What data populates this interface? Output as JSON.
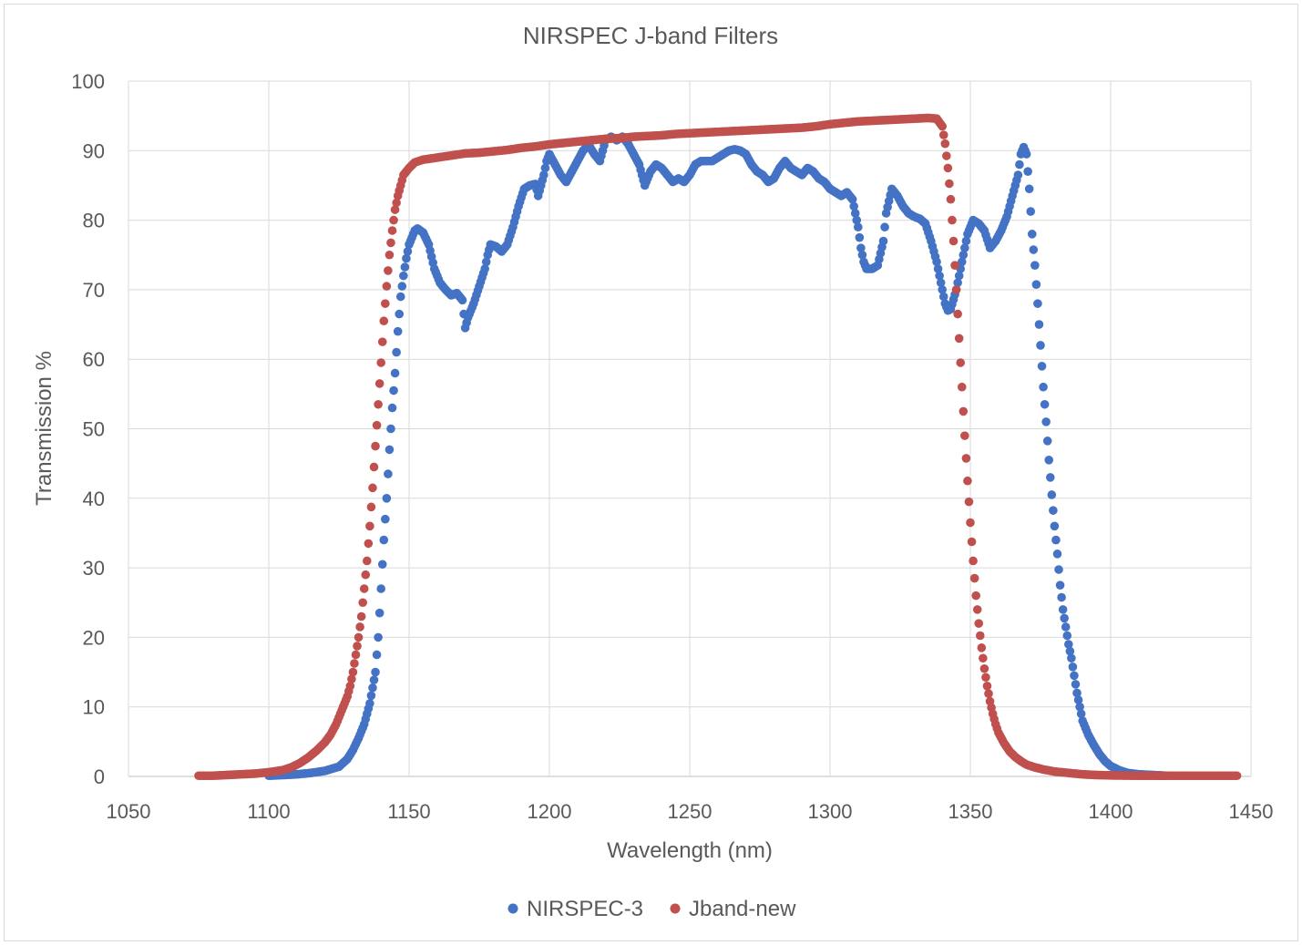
{
  "chart_data": {
    "type": "scatter",
    "title": "NIRSPEC J-band Filters",
    "xlabel": "Wavelength (nm)",
    "ylabel": "Transmission %",
    "xlim": [
      1050,
      1450
    ],
    "ylim": [
      0,
      100
    ],
    "xticks": [
      1050,
      1100,
      1150,
      1200,
      1250,
      1300,
      1350,
      1400,
      1450
    ],
    "yticks": [
      0,
      10,
      20,
      30,
      40,
      50,
      60,
      70,
      80,
      90,
      100
    ],
    "grid": true,
    "legend_position": "bottom",
    "series": [
      {
        "name": "NIRSPEC-3",
        "color": "#4472C4",
        "points": [
          [
            1100,
            0.1
          ],
          [
            1105,
            0.2
          ],
          [
            1110,
            0.3
          ],
          [
            1115,
            0.5
          ],
          [
            1120,
            0.8
          ],
          [
            1125,
            1.4
          ],
          [
            1128,
            2.5
          ],
          [
            1130,
            3.8
          ],
          [
            1132,
            5.5
          ],
          [
            1134,
            7.5
          ],
          [
            1136,
            10.5
          ],
          [
            1138,
            15
          ],
          [
            1139,
            20
          ],
          [
            1140,
            27
          ],
          [
            1141,
            34
          ],
          [
            1142,
            40
          ],
          [
            1143,
            47
          ],
          [
            1144,
            53
          ],
          [
            1145,
            58
          ],
          [
            1146,
            64
          ],
          [
            1147,
            69
          ],
          [
            1148,
            72
          ],
          [
            1149,
            74.5
          ],
          [
            1150,
            76.5
          ],
          [
            1151,
            77.5
          ],
          [
            1152,
            78.5
          ],
          [
            1153,
            78.8
          ],
          [
            1155,
            78.2
          ],
          [
            1157,
            76.5
          ],
          [
            1159,
            73
          ],
          [
            1161,
            71
          ],
          [
            1163,
            70
          ],
          [
            1165,
            69.2
          ],
          [
            1167,
            69.5
          ],
          [
            1169,
            68.5
          ],
          [
            1170,
            64.5
          ],
          [
            1171,
            66
          ],
          [
            1173,
            68
          ],
          [
            1175,
            70.5
          ],
          [
            1177,
            73
          ],
          [
            1178,
            75
          ],
          [
            1179,
            76.5
          ],
          [
            1181,
            76.2
          ],
          [
            1183,
            75.5
          ],
          [
            1185,
            76.5
          ],
          [
            1187,
            79
          ],
          [
            1189,
            82
          ],
          [
            1191,
            84.5
          ],
          [
            1193,
            85
          ],
          [
            1195,
            85.2
          ],
          [
            1196,
            83.5
          ],
          [
            1198,
            86.5
          ],
          [
            1199,
            88.5
          ],
          [
            1200,
            89.5
          ],
          [
            1202,
            88
          ],
          [
            1204,
            86.5
          ],
          [
            1206,
            85.5
          ],
          [
            1208,
            87
          ],
          [
            1210,
            88.5
          ],
          [
            1212,
            90
          ],
          [
            1214,
            90.8
          ],
          [
            1216,
            89.5
          ],
          [
            1218,
            88.5
          ],
          [
            1220,
            91.5
          ],
          [
            1222,
            92
          ],
          [
            1224,
            91.5
          ],
          [
            1226,
            92
          ],
          [
            1228,
            91
          ],
          [
            1230,
            89.5
          ],
          [
            1232,
            88
          ],
          [
            1234,
            85
          ],
          [
            1236,
            87
          ],
          [
            1238,
            88
          ],
          [
            1240,
            87.5
          ],
          [
            1242,
            86.5
          ],
          [
            1244,
            85.5
          ],
          [
            1246,
            86
          ],
          [
            1248,
            85.5
          ],
          [
            1250,
            86.5
          ],
          [
            1252,
            88
          ],
          [
            1254,
            88.5
          ],
          [
            1256,
            88.5
          ],
          [
            1258,
            88.5
          ],
          [
            1260,
            89
          ],
          [
            1262,
            89.5
          ],
          [
            1264,
            90
          ],
          [
            1266,
            90.2
          ],
          [
            1268,
            90
          ],
          [
            1270,
            89.5
          ],
          [
            1272,
            88
          ],
          [
            1274,
            87
          ],
          [
            1276,
            86.5
          ],
          [
            1278,
            85.5
          ],
          [
            1280,
            86
          ],
          [
            1282,
            87.5
          ],
          [
            1284,
            88.5
          ],
          [
            1286,
            87.5
          ],
          [
            1288,
            87
          ],
          [
            1290,
            86.5
          ],
          [
            1292,
            87.5
          ],
          [
            1294,
            87
          ],
          [
            1296,
            86
          ],
          [
            1298,
            85.5
          ],
          [
            1300,
            84.5
          ],
          [
            1302,
            84
          ],
          [
            1304,
            83.5
          ],
          [
            1306,
            84
          ],
          [
            1308,
            83
          ],
          [
            1310,
            79
          ],
          [
            1311,
            76
          ],
          [
            1312,
            74
          ],
          [
            1313,
            73
          ],
          [
            1315,
            73
          ],
          [
            1317,
            73.5
          ],
          [
            1319,
            77
          ],
          [
            1320,
            81
          ],
          [
            1322,
            84.5
          ],
          [
            1324,
            83.5
          ],
          [
            1326,
            82
          ],
          [
            1328,
            81
          ],
          [
            1330,
            80.5
          ],
          [
            1332,
            80.2
          ],
          [
            1334,
            79.5
          ],
          [
            1336,
            77
          ],
          [
            1338,
            74
          ],
          [
            1340,
            70
          ],
          [
            1341,
            68
          ],
          [
            1342,
            67
          ],
          [
            1343,
            67.2
          ],
          [
            1345,
            70
          ],
          [
            1347,
            74
          ],
          [
            1349,
            78
          ],
          [
            1351,
            80
          ],
          [
            1353,
            79.5
          ],
          [
            1355,
            78.5
          ],
          [
            1357,
            76
          ],
          [
            1359,
            77
          ],
          [
            1361,
            78.5
          ],
          [
            1363,
            80.5
          ],
          [
            1365,
            83.5
          ],
          [
            1367,
            86.5
          ],
          [
            1368,
            89.5
          ],
          [
            1369,
            90.5
          ],
          [
            1370,
            89.5
          ],
          [
            1371,
            84.5
          ],
          [
            1372,
            78
          ],
          [
            1373,
            73.5
          ],
          [
            1374,
            68
          ],
          [
            1375,
            62
          ],
          [
            1376,
            56
          ],
          [
            1377,
            51
          ],
          [
            1378,
            45.5
          ],
          [
            1379,
            40.5
          ],
          [
            1380,
            36
          ],
          [
            1381,
            32
          ],
          [
            1382,
            27.5
          ],
          [
            1383,
            24
          ],
          [
            1384,
            21.5
          ],
          [
            1385,
            19
          ],
          [
            1386,
            17
          ],
          [
            1387,
            14.5
          ],
          [
            1388,
            12
          ],
          [
            1389,
            10
          ],
          [
            1390,
            8
          ],
          [
            1392,
            6
          ],
          [
            1394,
            4.5
          ],
          [
            1396,
            3.2
          ],
          [
            1398,
            2.2
          ],
          [
            1400,
            1.5
          ],
          [
            1403,
            0.9
          ],
          [
            1406,
            0.5
          ],
          [
            1410,
            0.3
          ],
          [
            1415,
            0.2
          ],
          [
            1420,
            0.1
          ]
        ]
      },
      {
        "name": "Jband-new",
        "color": "#C0504D",
        "points": [
          [
            1075,
            0.1
          ],
          [
            1080,
            0.1
          ],
          [
            1085,
            0.2
          ],
          [
            1090,
            0.3
          ],
          [
            1095,
            0.4
          ],
          [
            1100,
            0.6
          ],
          [
            1105,
            0.9
          ],
          [
            1108,
            1.3
          ],
          [
            1111,
            1.9
          ],
          [
            1114,
            2.7
          ],
          [
            1117,
            3.7
          ],
          [
            1120,
            4.9
          ],
          [
            1122,
            6
          ],
          [
            1124,
            7.5
          ],
          [
            1126,
            9.5
          ],
          [
            1128,
            11.5
          ],
          [
            1129,
            13
          ],
          [
            1130,
            15
          ],
          [
            1131,
            17.5
          ],
          [
            1132,
            20
          ],
          [
            1133,
            23
          ],
          [
            1134,
            27
          ],
          [
            1135,
            31
          ],
          [
            1136,
            36
          ],
          [
            1137,
            41.5
          ],
          [
            1138,
            47.5
          ],
          [
            1139,
            53.5
          ],
          [
            1140,
            59.5
          ],
          [
            1141,
            65.5
          ],
          [
            1142,
            70.5
          ],
          [
            1143,
            75
          ],
          [
            1144,
            78.5
          ],
          [
            1145,
            81.5
          ],
          [
            1146,
            83.5
          ],
          [
            1147,
            85
          ],
          [
            1148,
            86.5
          ],
          [
            1150,
            87.5
          ],
          [
            1152,
            88.3
          ],
          [
            1155,
            88.7
          ],
          [
            1160,
            89
          ],
          [
            1165,
            89.3
          ],
          [
            1170,
            89.6
          ],
          [
            1175,
            89.7
          ],
          [
            1180,
            89.9
          ],
          [
            1185,
            90.1
          ],
          [
            1190,
            90.4
          ],
          [
            1195,
            90.6
          ],
          [
            1200,
            90.9
          ],
          [
            1205,
            91.1
          ],
          [
            1210,
            91.3
          ],
          [
            1215,
            91.5
          ],
          [
            1220,
            91.7
          ],
          [
            1225,
            91.8
          ],
          [
            1230,
            92
          ],
          [
            1235,
            92.1
          ],
          [
            1240,
            92.2
          ],
          [
            1245,
            92.4
          ],
          [
            1250,
            92.5
          ],
          [
            1255,
            92.6
          ],
          [
            1260,
            92.7
          ],
          [
            1265,
            92.8
          ],
          [
            1270,
            92.9
          ],
          [
            1275,
            93
          ],
          [
            1280,
            93.1
          ],
          [
            1285,
            93.2
          ],
          [
            1290,
            93.3
          ],
          [
            1295,
            93.5
          ],
          [
            1300,
            93.8
          ],
          [
            1305,
            94
          ],
          [
            1310,
            94.2
          ],
          [
            1315,
            94.3
          ],
          [
            1320,
            94.4
          ],
          [
            1325,
            94.5
          ],
          [
            1330,
            94.6
          ],
          [
            1335,
            94.7
          ],
          [
            1338,
            94.6
          ],
          [
            1340,
            93.5
          ],
          [
            1341,
            91
          ],
          [
            1342,
            87.5
          ],
          [
            1343,
            83
          ],
          [
            1344,
            77
          ],
          [
            1345,
            70
          ],
          [
            1346,
            63
          ],
          [
            1347,
            56
          ],
          [
            1348,
            49
          ],
          [
            1349,
            42.5
          ],
          [
            1350,
            36.5
          ],
          [
            1351,
            31
          ],
          [
            1352,
            26
          ],
          [
            1353,
            22
          ],
          [
            1354,
            18.5
          ],
          [
            1355,
            15.5
          ],
          [
            1356,
            13
          ],
          [
            1357,
            10.8
          ],
          [
            1358,
            9
          ],
          [
            1359,
            7.5
          ],
          [
            1360,
            6.3
          ],
          [
            1362,
            4.8
          ],
          [
            1364,
            3.6
          ],
          [
            1366,
            2.8
          ],
          [
            1368,
            2.2
          ],
          [
            1370,
            1.7
          ],
          [
            1373,
            1.3
          ],
          [
            1376,
            1
          ],
          [
            1380,
            0.7
          ],
          [
            1385,
            0.5
          ],
          [
            1390,
            0.3
          ],
          [
            1395,
            0.2
          ],
          [
            1400,
            0.15
          ],
          [
            1410,
            0.1
          ],
          [
            1420,
            0.1
          ],
          [
            1430,
            0.1
          ],
          [
            1440,
            0.1
          ],
          [
            1445,
            0.1
          ]
        ]
      }
    ]
  }
}
